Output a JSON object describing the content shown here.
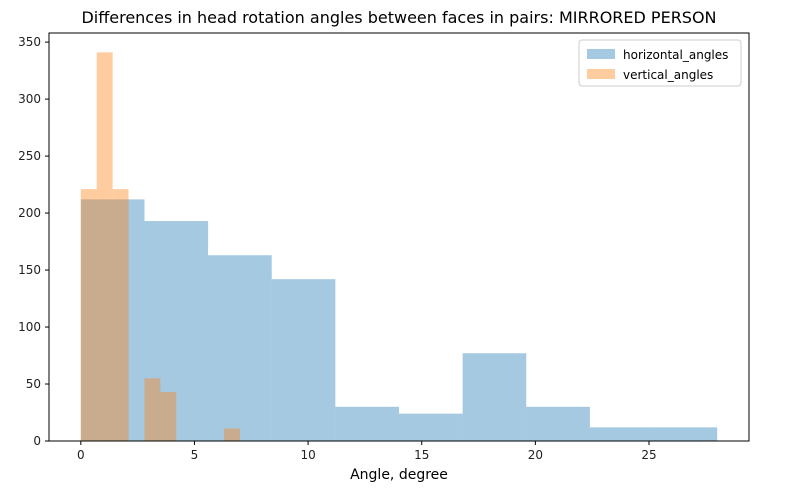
{
  "chart_data": {
    "type": "bar",
    "title": "Differences in head rotation angles between faces in pairs: MIRRORED PERSON",
    "xlabel": "Angle, degree",
    "ylabel": "",
    "xlim": [
      -1.4,
      29.4
    ],
    "ylim": [
      0,
      358
    ],
    "xticks": [
      0,
      5,
      10,
      15,
      20,
      25
    ],
    "yticks": [
      0,
      50,
      100,
      150,
      200,
      250,
      300,
      350
    ],
    "grid": false,
    "legend": "top-right",
    "series": [
      {
        "name": "horizontal_angles",
        "color": "#1f77b4",
        "alpha": 0.4,
        "bins": [
          {
            "x0": 0.0,
            "x1": 2.8,
            "value": 212
          },
          {
            "x0": 2.8,
            "x1": 5.6,
            "value": 193
          },
          {
            "x0": 5.6,
            "x1": 8.4,
            "value": 163
          },
          {
            "x0": 8.4,
            "x1": 11.2,
            "value": 142
          },
          {
            "x0": 11.2,
            "x1": 14.0,
            "value": 30
          },
          {
            "x0": 14.0,
            "x1": 16.8,
            "value": 24
          },
          {
            "x0": 16.8,
            "x1": 19.6,
            "value": 77
          },
          {
            "x0": 19.6,
            "x1": 22.4,
            "value": 30
          },
          {
            "x0": 22.4,
            "x1": 25.2,
            "value": 12
          },
          {
            "x0": 25.2,
            "x1": 28.0,
            "value": 12
          }
        ]
      },
      {
        "name": "vertical_angles",
        "color": "#ff7f0e",
        "alpha": 0.4,
        "bins": [
          {
            "x0": 0.0,
            "x1": 0.7,
            "value": 221
          },
          {
            "x0": 0.7,
            "x1": 1.4,
            "value": 341
          },
          {
            "x0": 1.4,
            "x1": 2.1,
            "value": 221
          },
          {
            "x0": 2.1,
            "x1": 2.8,
            "value": 0
          },
          {
            "x0": 2.8,
            "x1": 3.5,
            "value": 55
          },
          {
            "x0": 3.5,
            "x1": 4.2,
            "value": 43
          },
          {
            "x0": 4.2,
            "x1": 4.9,
            "value": 0
          },
          {
            "x0": 4.9,
            "x1": 5.6,
            "value": 0
          },
          {
            "x0": 5.6,
            "x1": 6.3,
            "value": 0
          },
          {
            "x0": 6.3,
            "x1": 7.0,
            "value": 11
          }
        ]
      }
    ]
  }
}
